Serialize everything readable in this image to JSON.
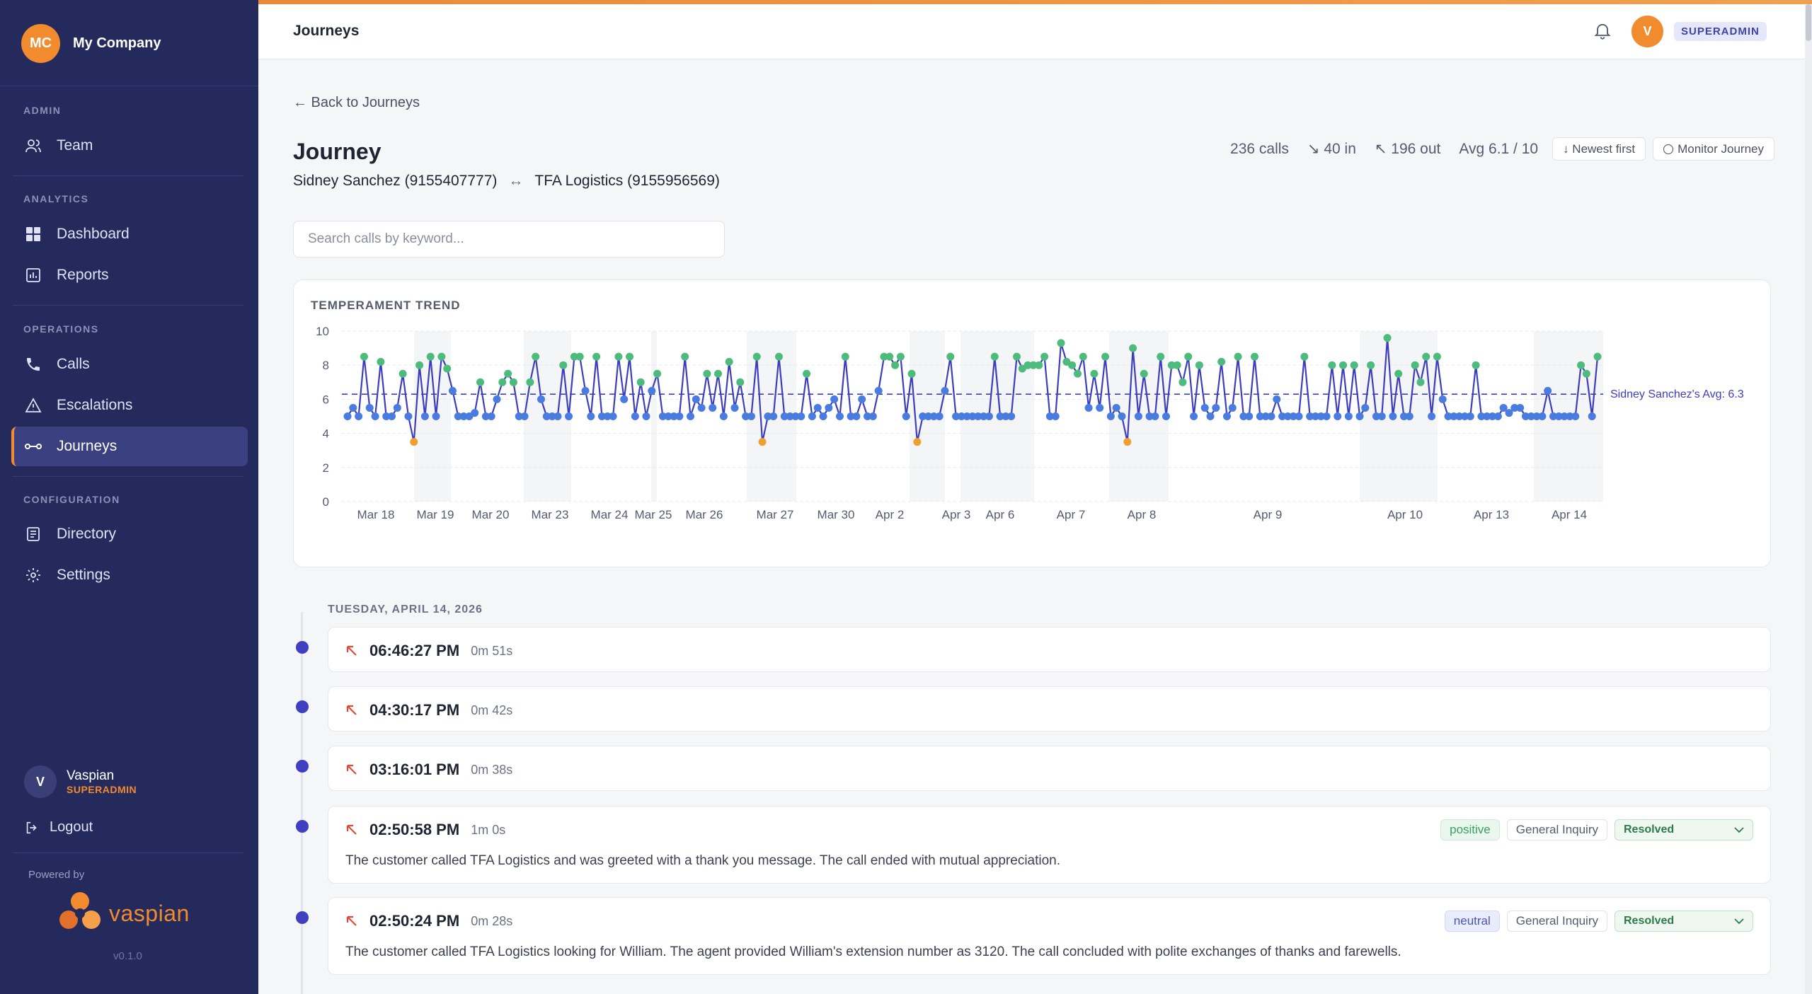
{
  "company": {
    "initials": "MC",
    "name": "My Company"
  },
  "sidebar": {
    "sections": [
      {
        "label": "ADMIN",
        "items": [
          {
            "label": "Team",
            "icon": "users-icon"
          }
        ]
      },
      {
        "label": "ANALYTICS",
        "items": [
          {
            "label": "Dashboard",
            "icon": "grid-icon"
          },
          {
            "label": "Reports",
            "icon": "bar-chart-icon"
          }
        ]
      },
      {
        "label": "OPERATIONS",
        "items": [
          {
            "label": "Calls",
            "icon": "phone-icon"
          },
          {
            "label": "Escalations",
            "icon": "warning-icon"
          },
          {
            "label": "Journeys",
            "icon": "journey-icon",
            "active": true
          }
        ]
      },
      {
        "label": "CONFIGURATION",
        "items": [
          {
            "label": "Directory",
            "icon": "directory-icon"
          },
          {
            "label": "Settings",
            "icon": "gear-icon"
          }
        ]
      }
    ],
    "user": {
      "initial": "V",
      "name": "Vaspian",
      "role": "SUPERADMIN"
    },
    "logout": "Logout",
    "powered_by": "Powered by",
    "logo_text": "vaspian",
    "version": "v0.1.0"
  },
  "topbar": {
    "title": "Journeys",
    "avatar_initial": "V",
    "role": "SUPERADMIN"
  },
  "journey": {
    "back": "← Back to Journeys",
    "title": "Journey",
    "party_a": "Sidney Sanchez (9155407777)",
    "party_b": "TFA Logistics (9155956569)",
    "stats": {
      "calls": "236 calls",
      "in": "↘ 40 in",
      "out": "↖ 196 out",
      "avg": "Avg 6.1 / 10"
    },
    "sort_label": "↓ Newest first",
    "monitor_label": "Monitor Journey",
    "search_placeholder": "Search calls by keyword..."
  },
  "chart_data": {
    "type": "line",
    "title": "TEMPERAMENT TREND",
    "ylim": [
      0,
      10
    ],
    "yticks": [
      0,
      2,
      4,
      6,
      8,
      10
    ],
    "x_tick_labels": [
      "Mar 18",
      "Mar 19",
      "Mar 20",
      "Mar 23",
      "Mar 24",
      "Mar 25",
      "Mar 26",
      "Mar 27",
      "Mar 30",
      "Apr 2",
      "Apr 3",
      "Apr 6",
      "Apr 7",
      "Apr 8",
      "Apr 9",
      "Apr 10",
      "Apr 13",
      "Apr 14"
    ],
    "average": {
      "value": 6.3,
      "label": "Sidney Sanchez's Avg: 6.3"
    },
    "grid": true,
    "colors": {
      "line": "#3d3dbf",
      "high": "#4cbb7c",
      "mid": "#4a7ce0",
      "low": "#f0a030"
    },
    "values": [
      5,
      5.5,
      5,
      8.5,
      5.5,
      5,
      8.2,
      5,
      5,
      5.5,
      7.5,
      5,
      3.5,
      8,
      5,
      8.5,
      5,
      8.5,
      7.8,
      6.5,
      5,
      5,
      5,
      5.2,
      7,
      5,
      5,
      6,
      7,
      7.5,
      7,
      5,
      5,
      7,
      8.5,
      6,
      5,
      5,
      5,
      8,
      5,
      8.5,
      8.5,
      6.5,
      5,
      8.5,
      5,
      5,
      5,
      8.5,
      6,
      8.5,
      5,
      7,
      5,
      6.5,
      7.5,
      5,
      5,
      5,
      5,
      8.5,
      5,
      6,
      5.5,
      7.5,
      5.5,
      7.5,
      5,
      8.2,
      5.5,
      7,
      5,
      5,
      8.5,
      3.5,
      5,
      5,
      8.5,
      5,
      5,
      5,
      5,
      7.5,
      5,
      5.5,
      5,
      5.5,
      6,
      5,
      8.5,
      5,
      5,
      6,
      5,
      5,
      6.5,
      8.5,
      8.5,
      8,
      8.5,
      5,
      7.5,
      3.5,
      5,
      5,
      5,
      5,
      6.5,
      8.5,
      5,
      5,
      5,
      5,
      5,
      5,
      5,
      8.5,
      5,
      5,
      5,
      8.5,
      7.8,
      8,
      8,
      8,
      8.5,
      5,
      5,
      9.3,
      8.2,
      8,
      7.5,
      8.5,
      5.5,
      7.5,
      5.5,
      8.5,
      5,
      5.5,
      5,
      3.5,
      9,
      5,
      7.5,
      5,
      5,
      8.5,
      5,
      8,
      8,
      7,
      8.5,
      5,
      8,
      5.5,
      5,
      5.5,
      8.2,
      5,
      5.5,
      8.5,
      5,
      5,
      8.5,
      5,
      5,
      5,
      6,
      5,
      5,
      5,
      5,
      8.5,
      5,
      5,
      5,
      5,
      8,
      5,
      8,
      5,
      8,
      5,
      5.5,
      8,
      5,
      5,
      9.6,
      5,
      7.5,
      5,
      5,
      8,
      7,
      8.5,
      5,
      8.5,
      6,
      5,
      5,
      5,
      5,
      5,
      8,
      5,
      5,
      5,
      5,
      5.5,
      5.2,
      5.5,
      5.5,
      5,
      5,
      5,
      5,
      6.5,
      5,
      5,
      5,
      5,
      5,
      8,
      7.5,
      5,
      8.5
    ]
  },
  "timeline": {
    "date_label": "TUESDAY, APRIL 14, 2026",
    "calls": [
      {
        "time": "06:46:27 PM",
        "duration": "0m 51s"
      },
      {
        "time": "04:30:17 PM",
        "duration": "0m 42s"
      },
      {
        "time": "03:16:01 PM",
        "duration": "0m 38s"
      },
      {
        "time": "02:50:58 PM",
        "duration": "1m 0s",
        "sentiment": "positive",
        "topic": "General Inquiry",
        "status": "Resolved",
        "summary": "The customer called TFA Logistics and was greeted with a thank you message. The call ended with mutual appreciation."
      },
      {
        "time": "02:50:24 PM",
        "duration": "0m 28s",
        "sentiment": "neutral",
        "topic": "General Inquiry",
        "status": "Resolved",
        "summary": "The customer called TFA Logistics looking for William. The agent provided William's extension number as 3120. The call concluded with polite exchanges of thanks and farewells."
      }
    ]
  }
}
